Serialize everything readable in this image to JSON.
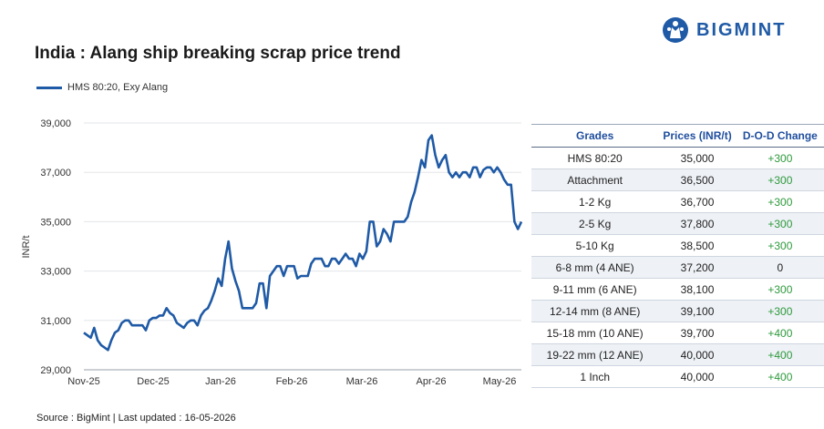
{
  "header": {
    "title": "India : Alang ship breaking scrap price trend",
    "logo_text": "BIGMINT"
  },
  "chart_data": {
    "type": "line",
    "title": "India : Alang ship breaking scrap price trend",
    "ylabel": "INR/t",
    "xlabel": "",
    "ylim": [
      29000,
      39000
    ],
    "yticks": [
      "29,000",
      "31,000",
      "33,000",
      "35,000",
      "37,000",
      "39,000"
    ],
    "xticks": [
      "Nov-25",
      "Dec-25",
      "Jan-26",
      "Feb-26",
      "Mar-26",
      "Apr-26",
      "May-26"
    ],
    "grid": true,
    "legend_position": "top-left",
    "color": "#1f5aa6",
    "series": [
      {
        "name": "HMS 80:20, Exy Alang",
        "values": [
          30500,
          30400,
          30300,
          30700,
          30200,
          30000,
          29900,
          29800,
          30200,
          30500,
          30600,
          30900,
          31000,
          31000,
          30800,
          30800,
          30800,
          30800,
          30600,
          31000,
          31100,
          31100,
          31200,
          31200,
          31500,
          31300,
          31200,
          30900,
          30800,
          30700,
          30900,
          31000,
          31000,
          30800,
          31200,
          31400,
          31500,
          31800,
          32200,
          32700,
          32400,
          33500,
          34200,
          33100,
          32600,
          32200,
          31500,
          31500,
          31500,
          31500,
          31700,
          32500,
          32500,
          31500,
          32800,
          33000,
          33200,
          33200,
          32800,
          33200,
          33200,
          33200,
          32700,
          32800,
          32800,
          32800,
          33300,
          33500,
          33500,
          33500,
          33200,
          33200,
          33500,
          33500,
          33300,
          33500,
          33700,
          33500,
          33500,
          33200,
          33700,
          33500,
          33800,
          35000,
          35000,
          34000,
          34200,
          34700,
          34500,
          34200,
          35000,
          35000,
          35000,
          35000,
          35200,
          35800,
          36200,
          36800,
          37500,
          37200,
          38300,
          38500,
          37700,
          37200,
          37500,
          37700,
          37000,
          36800,
          37000,
          36800,
          37000,
          37000,
          36800,
          37200,
          37200,
          36800,
          37100,
          37200,
          37200,
          37000,
          37200,
          37000,
          36700,
          36500,
          36500,
          35000,
          34700,
          35000
        ]
      }
    ]
  },
  "table": {
    "headers": [
      "Grades",
      "Prices (INR/t)",
      "D-O-D Change"
    ],
    "rows": [
      [
        "HMS 80:20",
        "35,000",
        "+300"
      ],
      [
        "Attachment",
        "36,500",
        "+300"
      ],
      [
        "1-2 Kg",
        "36,700",
        "+300"
      ],
      [
        "2-5 Kg",
        "37,800",
        "+300"
      ],
      [
        "5-10 Kg",
        "38,500",
        "+300"
      ],
      [
        "6-8 mm (4 ANE)",
        "37,200",
        "0"
      ],
      [
        "9-11 mm (6 ANE)",
        "38,100",
        "+300"
      ],
      [
        "12-14 mm (8 ANE)",
        "39,100",
        "+300"
      ],
      [
        "15-18 mm (10 ANE)",
        "39,700",
        "+400"
      ],
      [
        "19-22 mm (12 ANE)",
        "40,000",
        "+400"
      ],
      [
        "1 Inch",
        "40,000",
        "+400"
      ]
    ]
  },
  "footer": {
    "source": "Source : BigMint | Last updated : 16-05-2026"
  }
}
